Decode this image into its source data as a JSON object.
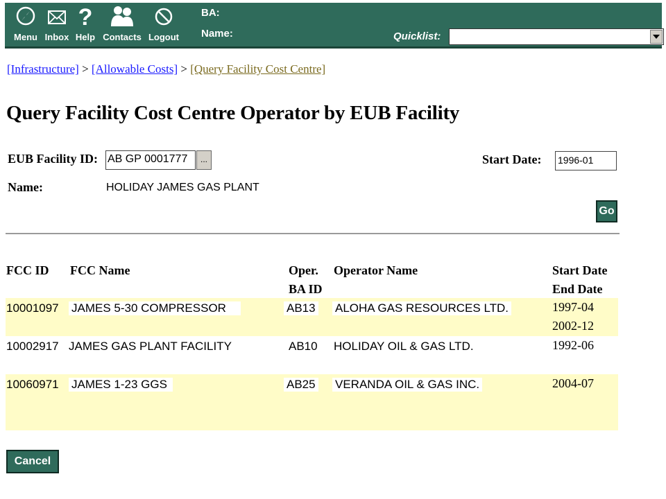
{
  "toolbar": {
    "menu": "Menu",
    "inbox": "Inbox",
    "help": "Help",
    "contacts": "Contacts",
    "logout": "Logout",
    "ba_label": "BA:",
    "name_label": "Name:",
    "quicklist_label": "Quicklist:",
    "quicklist_value": ""
  },
  "breadcrumb": {
    "items": [
      "[Infrastructure]",
      "[Allowable Costs]",
      "[Query Facility Cost Centre]"
    ],
    "separator": ">"
  },
  "page": {
    "title": "Query Facility Cost Centre Operator by EUB Facility"
  },
  "form": {
    "eub_label": "EUB Facility ID:",
    "eub_value": "AB GP 0001777",
    "browse_label": "...",
    "name_label": "Name:",
    "name_value": "HOLIDAY JAMES GAS PLANT",
    "start_label": "Start Date:",
    "start_value": "1996-01",
    "go": "Go"
  },
  "table": {
    "headers": {
      "fcc_id": "FCC ID",
      "fcc_name": "FCC Name",
      "oper_line1": "Oper.",
      "oper_line2": "BA ID",
      "operator_name": "Operator Name",
      "start_date": "Start Date",
      "end_date": "End Date"
    },
    "rows": [
      {
        "fcc_id": "10001097",
        "fcc_name": "JAMES 5-30 COMPRESSOR",
        "ba_id": "AB13",
        "operator": "ALOHA GAS RESOURCES LTD.",
        "start": "1997-04",
        "end": "2002-12"
      },
      {
        "fcc_id": "10002917",
        "fcc_name": "JAMES GAS PLANT FACILITY",
        "ba_id": "AB10",
        "operator": "HOLIDAY OIL & GAS LTD.",
        "start": "1992-06",
        "end": ""
      },
      {
        "fcc_id": "10060971",
        "fcc_name": "JAMES 1-23 GGS",
        "ba_id": "AB25",
        "operator": "VERANDA OIL & GAS INC.",
        "start": "2004-07",
        "end": ""
      }
    ]
  },
  "buttons": {
    "cancel": "Cancel"
  },
  "colors": {
    "toolbar": "#2f6b5b",
    "row_highlight": "#fffcc8",
    "link": "#1a1aff",
    "current_link": "#7a6a1f"
  }
}
